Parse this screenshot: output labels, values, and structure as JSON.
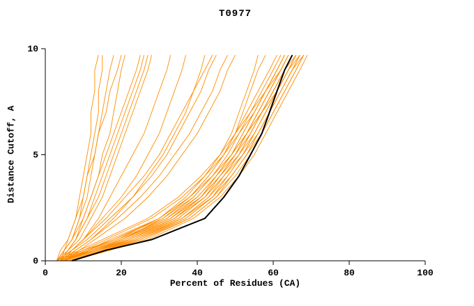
{
  "chart_data": {
    "type": "line",
    "title": "T0977",
    "xlabel": "Percent of Residues (CA)",
    "ylabel": "Distance Cutoff, A",
    "xlim": [
      0,
      100
    ],
    "ylim": [
      0,
      10
    ],
    "x_ticks": [
      0,
      20,
      40,
      60,
      80,
      100
    ],
    "y_ticks": [
      0,
      5,
      10
    ],
    "grid": false,
    "legend": "none",
    "colors": {
      "models": "#ff8c00",
      "highlight": "#000000",
      "axis": "#000000"
    },
    "y_levels": [
      0,
      0.5,
      1,
      2,
      3,
      4,
      5,
      6,
      7,
      8,
      9,
      9.7
    ],
    "models": [
      [
        4,
        12,
        20,
        33,
        40,
        45,
        49,
        52,
        55,
        58,
        61,
        63
      ],
      [
        5,
        14,
        24,
        36,
        43,
        47,
        51,
        54,
        57,
        60,
        63,
        65
      ],
      [
        3,
        10,
        18,
        30,
        38,
        43,
        47,
        50,
        53,
        56,
        59,
        61
      ],
      [
        6,
        16,
        26,
        38,
        45,
        49,
        53,
        56,
        59,
        62,
        65,
        67
      ],
      [
        5,
        13,
        22,
        35,
        42,
        46,
        50,
        53,
        56,
        59,
        62,
        64
      ],
      [
        4,
        11,
        19,
        32,
        39,
        44,
        48,
        51,
        54,
        57,
        60,
        62
      ],
      [
        6,
        15,
        25,
        37,
        44,
        48,
        52,
        55,
        58,
        61,
        64,
        66
      ],
      [
        5,
        12,
        21,
        34,
        41,
        46,
        50,
        53,
        57,
        60,
        63,
        66
      ],
      [
        4,
        13,
        23,
        36,
        43,
        48,
        52,
        56,
        59,
        62,
        65,
        68
      ],
      [
        7,
        17,
        27,
        39,
        46,
        51,
        55,
        58,
        61,
        64,
        67,
        69
      ],
      [
        5,
        14,
        22,
        34,
        41,
        45,
        49,
        52,
        55,
        58,
        61,
        63
      ],
      [
        4,
        12,
        20,
        32,
        40,
        45,
        50,
        54,
        57,
        60,
        63,
        65
      ],
      [
        6,
        15,
        24,
        36,
        44,
        49,
        53,
        57,
        60,
        63,
        66,
        68
      ],
      [
        5,
        13,
        21,
        33,
        41,
        46,
        51,
        55,
        58,
        61,
        64,
        66
      ],
      [
        4,
        11,
        18,
        31,
        39,
        44,
        49,
        53,
        56,
        59,
        62,
        64
      ],
      [
        6,
        16,
        25,
        38,
        45,
        50,
        54,
        57,
        60,
        63,
        66,
        68
      ],
      [
        5,
        14,
        23,
        35,
        42,
        47,
        51,
        54,
        57,
        60,
        63,
        65
      ],
      [
        4,
        12,
        20,
        33,
        41,
        46,
        50,
        53,
        56,
        59,
        62,
        64
      ],
      [
        6,
        15,
        24,
        37,
        44,
        49,
        53,
        56,
        59,
        62,
        65,
        67
      ],
      [
        5,
        13,
        22,
        34,
        42,
        47,
        52,
        55,
        58,
        61,
        64,
        66
      ],
      [
        4,
        10,
        16,
        28,
        36,
        42,
        47,
        51,
        55,
        58,
        62,
        64
      ],
      [
        5,
        11,
        17,
        30,
        38,
        44,
        49,
        53,
        57,
        61,
        64,
        67
      ],
      [
        3,
        9,
        15,
        27,
        35,
        41,
        46,
        50,
        54,
        58,
        61,
        63
      ],
      [
        4,
        11,
        19,
        30,
        37,
        42,
        46,
        49,
        51,
        53,
        55,
        56
      ],
      [
        5,
        12,
        20,
        31,
        38,
        43,
        47,
        50,
        52,
        54,
        56,
        58
      ],
      [
        4,
        8,
        12,
        19,
        25,
        30,
        34,
        38,
        41,
        44,
        46,
        48
      ],
      [
        3,
        7,
        10,
        16,
        21,
        26,
        30,
        33,
        36,
        39,
        42,
        44
      ],
      [
        5,
        9,
        13,
        21,
        27,
        32,
        36,
        40,
        43,
        46,
        48,
        50
      ],
      [
        4,
        7,
        11,
        17,
        23,
        28,
        32,
        35,
        38,
        41,
        43,
        45
      ],
      [
        4,
        7,
        10,
        15,
        20,
        24,
        27,
        30,
        32,
        34,
        36,
        37
      ],
      [
        5,
        8,
        12,
        18,
        23,
        27,
        31,
        34,
        37,
        39,
        41,
        42
      ],
      [
        3,
        5,
        7,
        9,
        11,
        12,
        13,
        14,
        15,
        16,
        17,
        18
      ],
      [
        4,
        6,
        8,
        10,
        12,
        14,
        15,
        17,
        18,
        19,
        20,
        21
      ],
      [
        3,
        5,
        6,
        8,
        9,
        10,
        11,
        12,
        12,
        13,
        13,
        14
      ],
      [
        4,
        6,
        9,
        12,
        15,
        17,
        19,
        21,
        23,
        25,
        27,
        28
      ],
      [
        3,
        6,
        8,
        11,
        13,
        15,
        17,
        19,
        21,
        23,
        25,
        26
      ],
      [
        4,
        5,
        7,
        9,
        10,
        11,
        12,
        13,
        14,
        14,
        15,
        15
      ],
      [
        3,
        5,
        7,
        10,
        12,
        14,
        16,
        18,
        20,
        22,
        24,
        25
      ],
      [
        5,
        7,
        10,
        14,
        17,
        20,
        23,
        26,
        28,
        30,
        32,
        33
      ],
      [
        4,
        6,
        8,
        11,
        14,
        16,
        18,
        20,
        22,
        24,
        26,
        27
      ],
      [
        3,
        4,
        6,
        8,
        10,
        11,
        13,
        14,
        16,
        17,
        19,
        20
      ]
    ],
    "highlight": [
      7,
      16,
      28,
      42,
      47,
      51,
      54,
      57,
      59,
      61,
      63,
      65
    ]
  }
}
